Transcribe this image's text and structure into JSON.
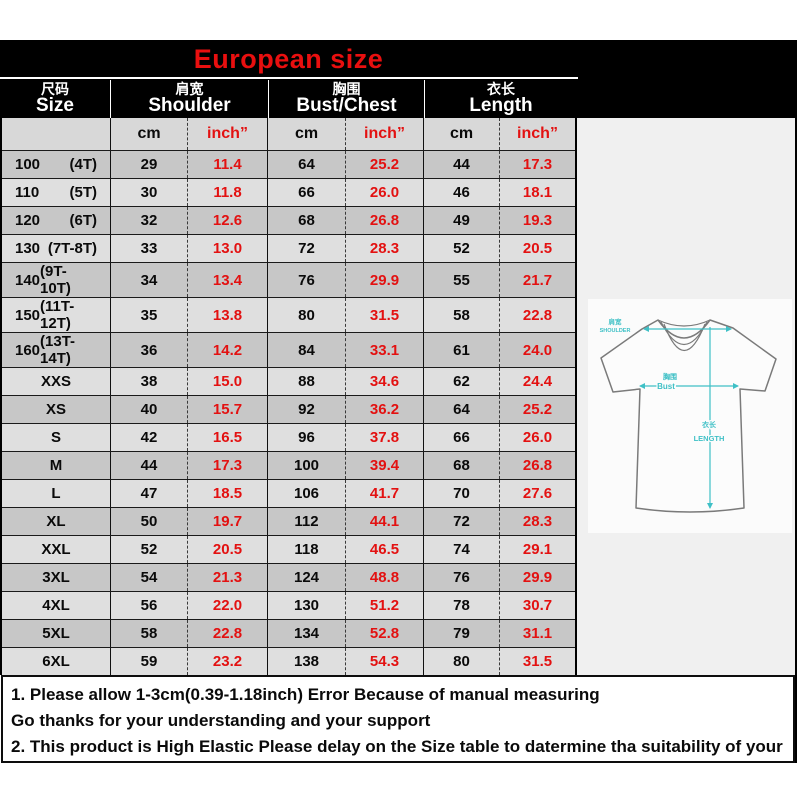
{
  "header": {
    "title": "European size",
    "groups": [
      {
        "zh": "尺码",
        "en": "Size"
      },
      {
        "zh": "肩宽",
        "en": "Shoulder"
      },
      {
        "zh": "胸围",
        "en": "Bust/Chest"
      },
      {
        "zh": "衣长",
        "en": "Length"
      }
    ],
    "units": {
      "cm": "cm",
      "inch": "inch”"
    }
  },
  "chart_data": {
    "type": "table",
    "title": "European size",
    "columns": [
      "Size",
      "Shoulder cm",
      "Shoulder inch",
      "Bust/Chest cm",
      "Bust/Chest inch",
      "Length cm",
      "Length inch"
    ],
    "rows": [
      {
        "size": "100",
        "age": "(4T)",
        "values": [
          "29",
          "11.4",
          "64",
          "25.2",
          "44",
          "17.3"
        ]
      },
      {
        "size": "110",
        "age": "(5T)",
        "values": [
          "30",
          "11.8",
          "66",
          "26.0",
          "46",
          "18.1"
        ]
      },
      {
        "size": "120",
        "age": "(6T)",
        "values": [
          "32",
          "12.6",
          "68",
          "26.8",
          "49",
          "19.3"
        ]
      },
      {
        "size": "130",
        "age": "(7T-8T)",
        "values": [
          "33",
          "13.0",
          "72",
          "28.3",
          "52",
          "20.5"
        ]
      },
      {
        "size": "140",
        "age": "(9T-10T)",
        "values": [
          "34",
          "13.4",
          "76",
          "29.9",
          "55",
          "21.7"
        ]
      },
      {
        "size": "150",
        "age": "(11T-12T)",
        "values": [
          "35",
          "13.8",
          "80",
          "31.5",
          "58",
          "22.8"
        ]
      },
      {
        "size": "160",
        "age": "(13T-14T)",
        "values": [
          "36",
          "14.2",
          "84",
          "33.1",
          "61",
          "24.0"
        ]
      },
      {
        "size": "XXS",
        "age": "",
        "values": [
          "38",
          "15.0",
          "88",
          "34.6",
          "62",
          "24.4"
        ]
      },
      {
        "size": "XS",
        "age": "",
        "values": [
          "40",
          "15.7",
          "92",
          "36.2",
          "64",
          "25.2"
        ]
      },
      {
        "size": "S",
        "age": "",
        "values": [
          "42",
          "16.5",
          "96",
          "37.8",
          "66",
          "26.0"
        ]
      },
      {
        "size": "M",
        "age": "",
        "values": [
          "44",
          "17.3",
          "100",
          "39.4",
          "68",
          "26.8"
        ]
      },
      {
        "size": "L",
        "age": "",
        "values": [
          "47",
          "18.5",
          "106",
          "41.7",
          "70",
          "27.6"
        ]
      },
      {
        "size": "XL",
        "age": "",
        "values": [
          "50",
          "19.7",
          "112",
          "44.1",
          "72",
          "28.3"
        ]
      },
      {
        "size": "XXL",
        "age": "",
        "values": [
          "52",
          "20.5",
          "118",
          "46.5",
          "74",
          "29.1"
        ]
      },
      {
        "size": "3XL",
        "age": "",
        "values": [
          "54",
          "21.3",
          "124",
          "48.8",
          "76",
          "29.9"
        ]
      },
      {
        "size": "4XL",
        "age": "",
        "values": [
          "56",
          "22.0",
          "130",
          "51.2",
          "78",
          "30.7"
        ]
      },
      {
        "size": "5XL",
        "age": "",
        "values": [
          "58",
          "22.8",
          "134",
          "52.8",
          "79",
          "31.1"
        ]
      },
      {
        "size": "6XL",
        "age": "",
        "values": [
          "59",
          "23.2",
          "138",
          "54.3",
          "80",
          "31.5"
        ]
      }
    ]
  },
  "notes": [
    "1. Please allow 1-3cm(0.39-1.18inch) Error Because of manual measuring",
    "Go thanks for your understanding and your support",
    "2. This product is High Elastic  Please delay on the Size table to datermine tha suitability of your"
  ],
  "diagram": {
    "shoulder_zh": "肩宽",
    "shoulder_en": "SHOULDER",
    "bust_zh": "胸围",
    "bust_en": "Bust",
    "length_zh": "衣长",
    "length_en": "LENGTH"
  },
  "colors": {
    "accent_red": "#e31111",
    "teal": "#3fc0c6",
    "row_dark": "#c7c7c7",
    "row_light": "#dfdfdf",
    "subheader_gray": "#d8d8d8",
    "panel_gray": "#f0f0f0"
  }
}
